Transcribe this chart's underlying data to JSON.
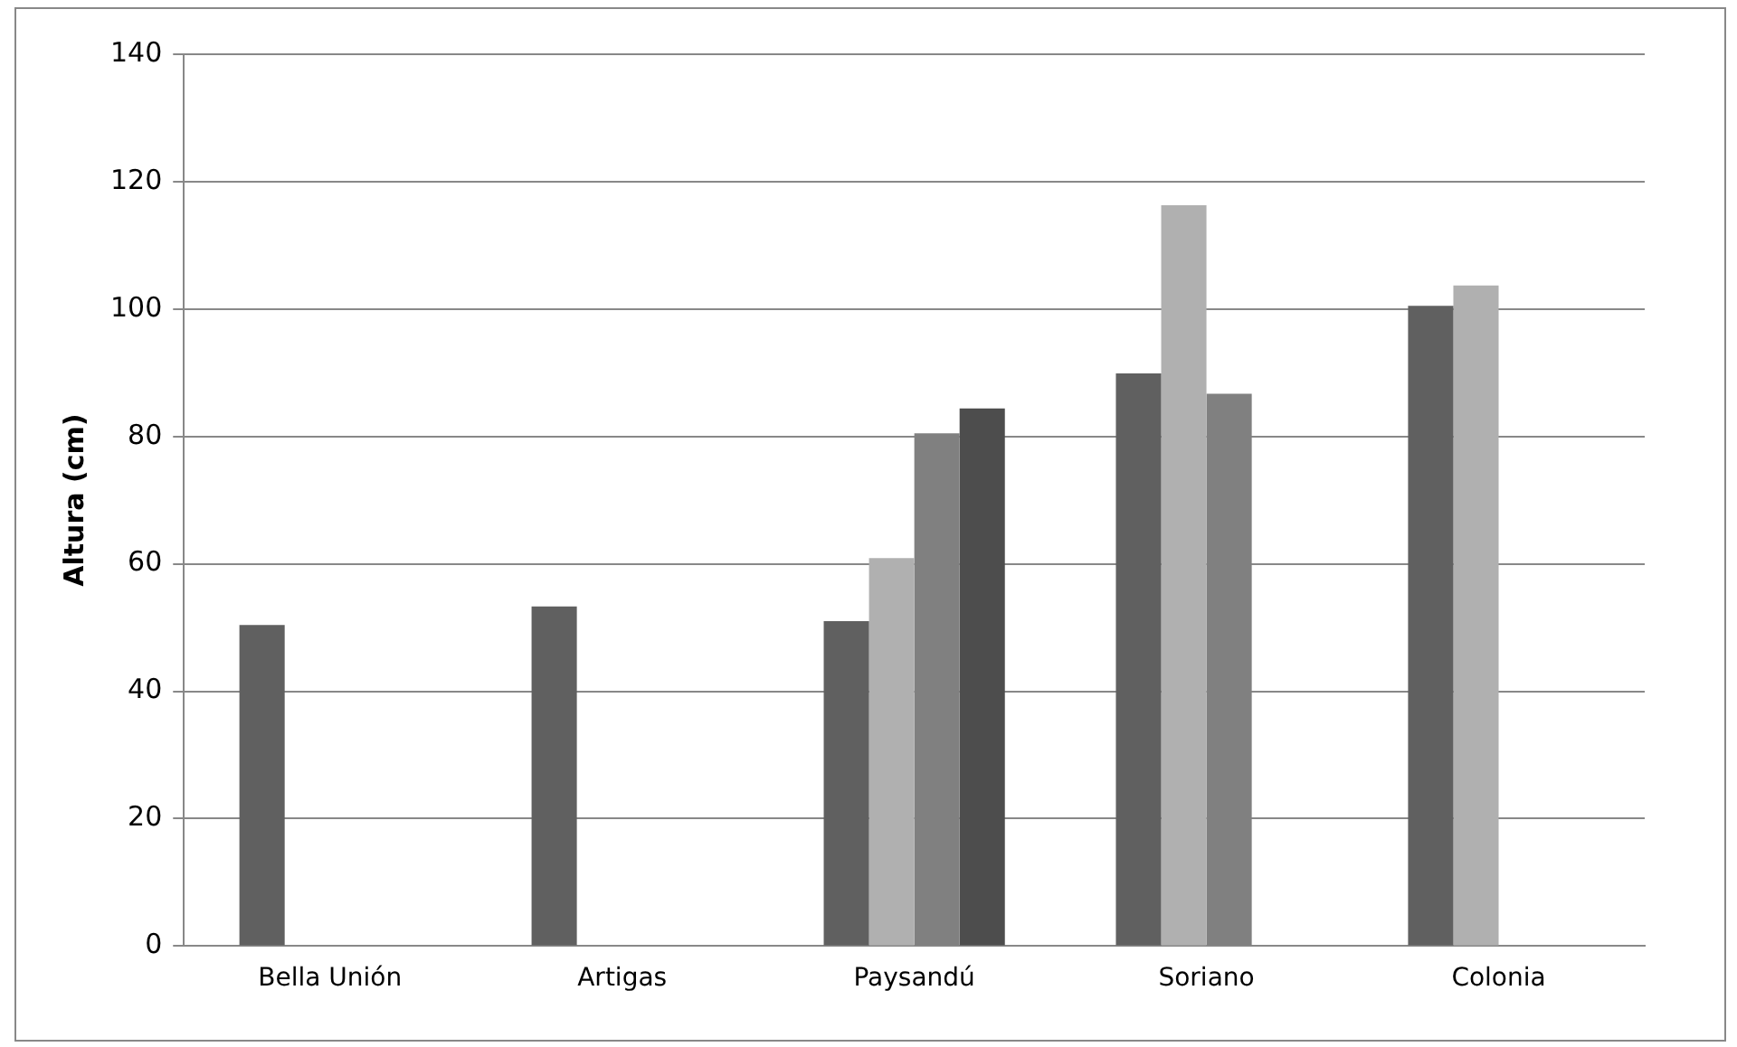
{
  "chart_data": {
    "type": "bar",
    "ylabel": "Altura (cm)",
    "categories": [
      "Bella Unión",
      "Artigas",
      "Paysandú",
      "Soriano",
      "Colonia"
    ],
    "series": [
      {
        "color": "#606060",
        "values": [
          50.4,
          53.3,
          51,
          89.9,
          100.5
        ]
      },
      {
        "color": "#b0b0b0",
        "values": [
          null,
          null,
          60.9,
          116.3,
          103.7
        ]
      },
      {
        "color": "#808080",
        "values": [
          null,
          null,
          80.5,
          86.7,
          null
        ]
      },
      {
        "color": "#4d4d4d",
        "values": [
          null,
          null,
          84.4,
          null,
          null
        ]
      }
    ],
    "ylim": [
      0,
      140
    ],
    "yticks": [
      0,
      20,
      40,
      60,
      80,
      100,
      120,
      140
    ],
    "grid": "y",
    "legend": false
  }
}
